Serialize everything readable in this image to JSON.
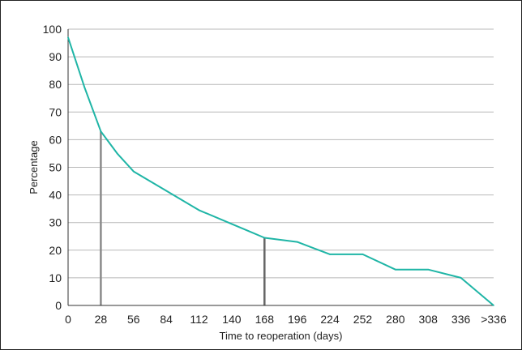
{
  "chart_data": {
    "type": "line",
    "title": "",
    "xlabel": "Time to reoperation (days)",
    "ylabel": "Percentage",
    "x_tick_labels": [
      "0",
      "28",
      "56",
      "84",
      "112",
      "140",
      "168",
      "196",
      "224",
      "252",
      "280",
      "308",
      "336",
      ">336"
    ],
    "y_ticks": [
      0,
      10,
      20,
      30,
      40,
      50,
      60,
      70,
      80,
      90,
      100
    ],
    "ylim": [
      0,
      100
    ],
    "xlim": [
      0,
      364
    ],
    "grid": "horizontal",
    "legend": "none",
    "series": [
      {
        "points": [
          [
            0,
            97
          ],
          [
            14,
            79
          ],
          [
            28,
            63
          ],
          [
            42,
            55
          ],
          [
            56,
            48.5
          ],
          [
            84,
            41.5
          ],
          [
            112,
            34.5
          ],
          [
            140,
            29.5
          ],
          [
            154,
            27
          ],
          [
            168,
            24.5
          ],
          [
            196,
            23
          ],
          [
            224,
            18.5
          ],
          [
            252,
            18.5
          ],
          [
            280,
            13
          ],
          [
            308,
            13
          ],
          [
            336,
            10
          ],
          [
            364,
            0
          ]
        ],
        "color": "#1fb5a6"
      }
    ],
    "reference_lines": [
      {
        "x": 28,
        "y": 63,
        "color": "#8a8a8a"
      },
      {
        "x": 168,
        "y": 24.5,
        "color": "#666666"
      }
    ],
    "colors": {
      "grid": "#b8b8b8",
      "axis": "#333333"
    }
  }
}
